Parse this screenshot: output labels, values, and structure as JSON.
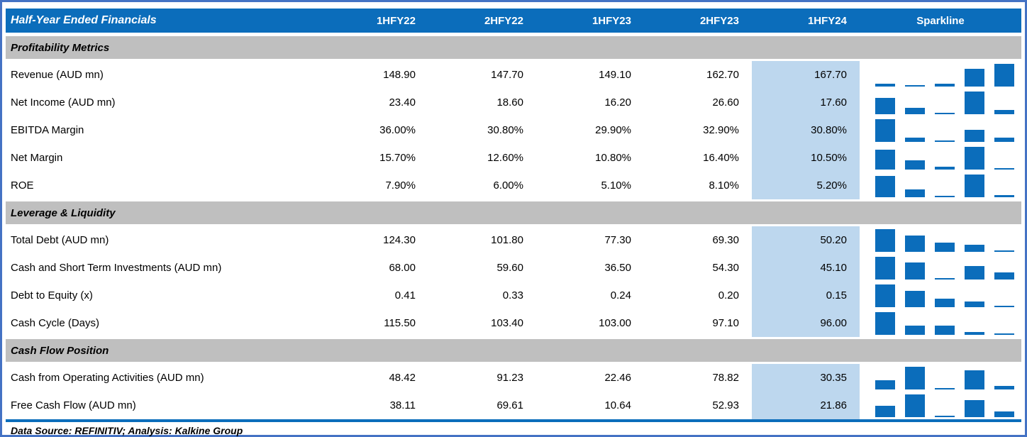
{
  "chart_data": {
    "type": "table",
    "title": "Half-Year Ended Financials",
    "columns": [
      "1HFY22",
      "2HFY22",
      "1HFY23",
      "2HFY23",
      "1HFY24"
    ],
    "sparkline_column": "Sparkline",
    "sparkline_type": "bar",
    "highlighted_column": "1HFY24",
    "sections": [
      {
        "name": "Profitability Metrics",
        "rows": [
          {
            "label": "Revenue (AUD mn)",
            "values": [
              148.9,
              147.7,
              149.1,
              162.7,
              167.7
            ],
            "unit": ""
          },
          {
            "label": "Net Income (AUD mn)",
            "values": [
              23.4,
              18.6,
              16.2,
              26.6,
              17.6
            ],
            "unit": ""
          },
          {
            "label": "EBITDA Margin",
            "values": [
              36.0,
              30.8,
              29.9,
              32.9,
              30.8
            ],
            "unit": "%"
          },
          {
            "label": "Net Margin",
            "values": [
              15.7,
              12.6,
              10.8,
              16.4,
              10.5
            ],
            "unit": "%"
          },
          {
            "label": "ROE",
            "values": [
              7.9,
              6.0,
              5.1,
              8.1,
              5.2
            ],
            "unit": "%"
          }
        ]
      },
      {
        "name": "Leverage & Liquidity",
        "rows": [
          {
            "label": "Total Debt (AUD mn)",
            "values": [
              124.3,
              101.8,
              77.3,
              69.3,
              50.2
            ],
            "unit": ""
          },
          {
            "label": "Cash and Short Term Investments (AUD mn)",
            "values": [
              68.0,
              59.6,
              36.5,
              54.3,
              45.1
            ],
            "unit": ""
          },
          {
            "label": "Debt to Equity (x)",
            "values": [
              0.41,
              0.33,
              0.24,
              0.2,
              0.15
            ],
            "unit": ""
          },
          {
            "label": "Cash Cycle (Days)",
            "values": [
              115.5,
              103.4,
              103.0,
              97.1,
              96.0
            ],
            "unit": ""
          }
        ]
      },
      {
        "name": "Cash Flow Position",
        "rows": [
          {
            "label": "Cash from Operating Activities (AUD mn)",
            "values": [
              48.42,
              91.23,
              22.46,
              78.82,
              30.35
            ],
            "unit": ""
          },
          {
            "label": "Free Cash Flow (AUD mn)",
            "values": [
              38.11,
              69.61,
              10.64,
              52.93,
              21.86
            ],
            "unit": ""
          }
        ]
      }
    ],
    "footer": "Data Source: REFINITIV; Analysis: Kalkine Group"
  },
  "colors": {
    "header_blue": "#0B6DBB",
    "frame_blue": "#4472C4",
    "section_gray": "#BFBFBF",
    "highlight_blue": "#BDD7EE",
    "sparkline_blue": "#0B6DBB",
    "header_text": "#FFFFFF",
    "body_text": "#000000"
  }
}
